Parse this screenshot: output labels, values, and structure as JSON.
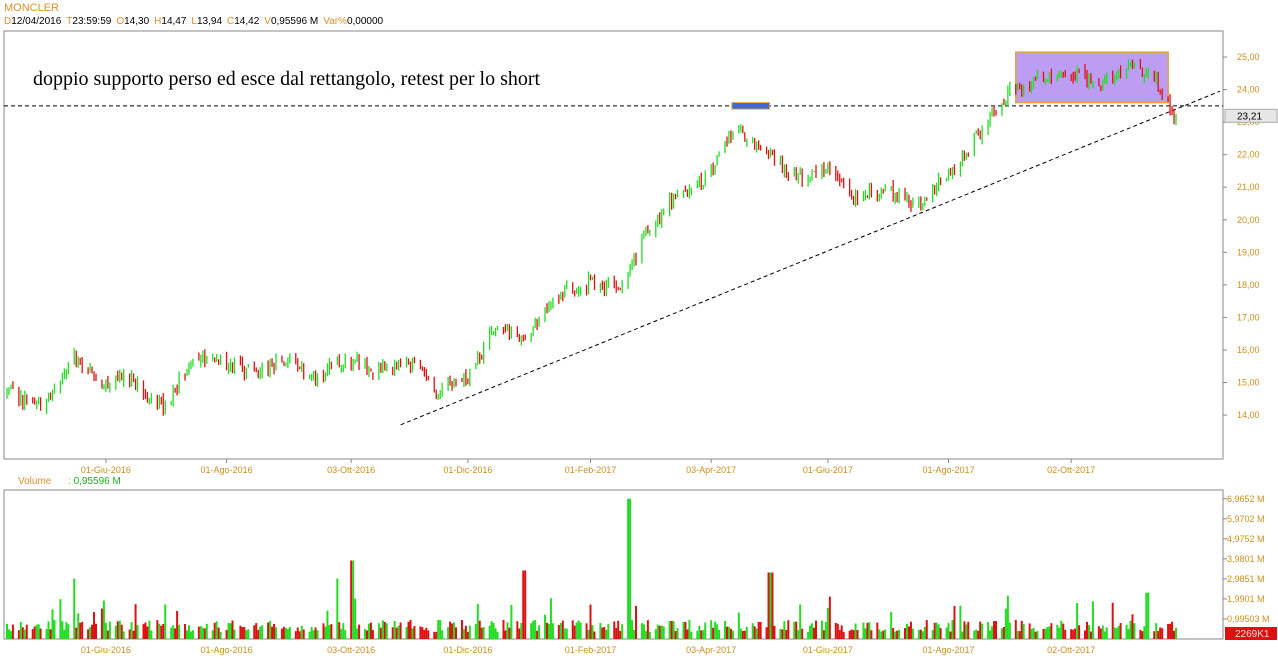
{
  "header": {
    "title": "MONCLER",
    "fields": [
      {
        "key": "D",
        "value": "12/04/2016"
      },
      {
        "key": "T",
        "value": "23:59:59"
      },
      {
        "key": "O",
        "value": "14,30"
      },
      {
        "key": "H",
        "value": "14,47"
      },
      {
        "key": "L",
        "value": "13,94"
      },
      {
        "key": "C",
        "value": "14,42"
      },
      {
        "key": "V",
        "value": "0,95596 M"
      },
      {
        "key": "Var%",
        "value": "0,00000"
      }
    ]
  },
  "annotation": "doppio supporto perso ed esce dal rettangolo, retest per lo short",
  "volume_header": {
    "label": "Volume",
    "sep": ":",
    "value": "0,95596 M"
  },
  "colors": {
    "up": "#22dd22",
    "down": "#dd1111",
    "rectangle_fill": "#b28cf2",
    "rectangle_border": "#e8a040",
    "blue_marker": "#3a6bd8",
    "tick_text": "#c8901c"
  },
  "chart_data": [
    {
      "type": "candlestick",
      "title": "MONCLER",
      "x_tick_labels": [
        "01-Giu-2016",
        "01-Ago-2016",
        "03-Ott-2016",
        "01-Dic-2016",
        "01-Feb-2017",
        "03-Apr-2017",
        "01-Giu-2017",
        "01-Ago-2017",
        "02-Ott-2017"
      ],
      "y_tick_labels": [
        "14,00",
        "15,00",
        "16,00",
        "17,00",
        "18,00",
        "19,00",
        "20,00",
        "21,00",
        "22,00",
        "23,00",
        "24,00",
        "25,00"
      ],
      "ylim": [
        12.65,
        25.8
      ],
      "last_price_label": "23,21",
      "series": [
        {
          "kind": "close_path",
          "x": [
            "2016-04-12",
            "2016-05-01",
            "2016-05-15",
            "2016-06-01",
            "2016-06-15",
            "2016-07-01",
            "2016-07-15",
            "2016-08-01",
            "2016-08-15",
            "2016-09-01",
            "2016-09-15",
            "2016-10-01",
            "2016-10-15",
            "2016-11-01",
            "2016-11-15",
            "2016-12-01",
            "2016-12-15",
            "2017-01-01",
            "2017-01-15",
            "2017-02-01",
            "2017-02-15",
            "2017-03-01",
            "2017-03-15",
            "2017-04-01",
            "2017-04-15",
            "2017-05-01",
            "2017-05-15",
            "2017-06-01",
            "2017-06-15",
            "2017-07-01",
            "2017-07-15",
            "2017-08-01",
            "2017-08-15",
            "2017-09-01",
            "2017-09-15",
            "2017-10-01",
            "2017-10-15",
            "2017-11-01",
            "2017-11-15",
            "2017-11-22"
          ],
          "y": [
            14.7,
            14.2,
            15.8,
            15.0,
            15.1,
            14.2,
            15.9,
            15.6,
            15.3,
            15.7,
            15.1,
            15.8,
            15.3,
            15.6,
            14.8,
            15.1,
            16.8,
            16.4,
            17.6,
            18.1,
            17.8,
            19.6,
            20.6,
            21.3,
            22.8,
            22.0,
            21.3,
            21.6,
            20.7,
            21.0,
            20.4,
            21.4,
            22.5,
            23.9,
            24.3,
            24.6,
            24.2,
            24.7,
            24.2,
            23.21
          ]
        }
      ],
      "annotations": [
        {
          "kind": "horizontal_dashed_line",
          "y": 23.5
        },
        {
          "kind": "trendline_dashed",
          "from": {
            "x": "2016-10-28",
            "y": 13.7
          },
          "to": {
            "x": "2017-11-26",
            "y": 23.95
          }
        },
        {
          "kind": "rectangle",
          "x": [
            "2017-09-04",
            "2017-11-15"
          ],
          "y": [
            23.6,
            25.15
          ]
        },
        {
          "kind": "marker",
          "x": [
            "2017-04-15",
            "2017-05-01"
          ],
          "y": [
            23.4,
            23.6
          ]
        }
      ]
    },
    {
      "type": "bar",
      "title": "Volume",
      "ylabel": "",
      "y_tick_labels": [
        "0,99503 M",
        "1,9901 M",
        "2,9851 M",
        "3,9801 M",
        "4,9752 M",
        "5,9702 M",
        "6,9652 M"
      ],
      "ylim": [
        0,
        7.4
      ],
      "last_value_label": "2269K1",
      "notable_spikes": [
        {
          "x": "2016-05-15",
          "value": 3.0
        },
        {
          "x": "2016-09-25",
          "value": 3.0
        },
        {
          "x": "2016-10-03",
          "value": 3.9
        },
        {
          "x": "2016-12-30",
          "value": 3.4
        },
        {
          "x": "2017-02-20",
          "value": 6.9652
        },
        {
          "x": "2017-05-03",
          "value": 3.3
        },
        {
          "x": "2017-11-10",
          "value": 2.3
        }
      ]
    }
  ]
}
